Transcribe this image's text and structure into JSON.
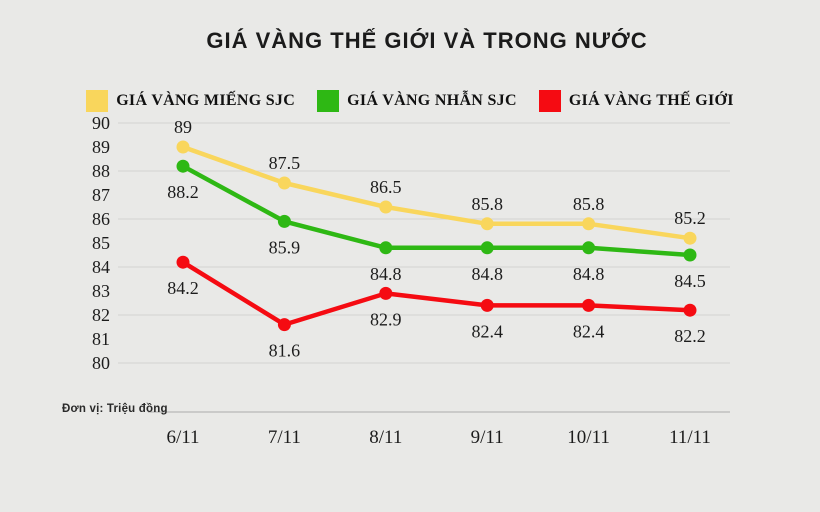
{
  "title": "GIÁ VÀNG THẾ GIỚI VÀ TRONG NƯỚC",
  "unit_note": "Đơn vị: Triệu đồng",
  "colors": {
    "background": "#e9e9e7",
    "grid": "#d4d4d2",
    "axis_line": "#b9b9b7",
    "text": "#1c1c1c"
  },
  "chart_data": {
    "type": "line",
    "x": [
      "6/11",
      "7/11",
      "8/11",
      "9/11",
      "10/11",
      "11/11"
    ],
    "series": [
      {
        "name": "GIÁ VÀNG MIẾNG SJC",
        "color": "#f9d65c",
        "values": [
          89,
          87.5,
          86.5,
          85.8,
          85.8,
          85.2
        ],
        "label_position": "above"
      },
      {
        "name": "GIÁ VÀNG NHẪN SJC",
        "color": "#2eb814",
        "values": [
          88.2,
          85.9,
          84.8,
          84.8,
          84.8,
          84.5
        ],
        "label_position": "below"
      },
      {
        "name": "GIÁ VÀNG THẾ GIỚI",
        "color": "#f50b12",
        "values": [
          84.2,
          81.6,
          82.9,
          82.4,
          82.4,
          82.2
        ],
        "label_position": "below"
      }
    ],
    "ylim": [
      80,
      90
    ],
    "ytick_step": 1,
    "gridline_values": [
      80,
      82,
      84,
      86,
      88,
      90
    ],
    "legend_position": "top",
    "grid": true,
    "ylabel": "Triệu đồng"
  }
}
